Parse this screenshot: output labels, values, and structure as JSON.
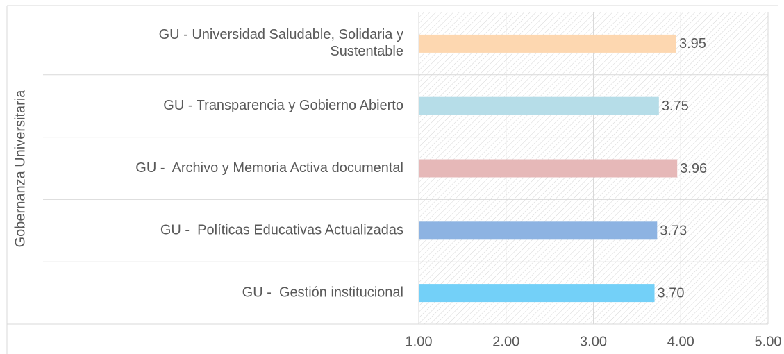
{
  "chart_data": {
    "type": "barh",
    "ylabel": "Gobernanza Universitaria",
    "categories": [
      "GU - Universidad Saludable, Solidaria y\nSustentable",
      "GU - Transparencia y Gobierno Abierto",
      "GU -  Archivo y Memoria Activa documental",
      "GU -  Políticas Educativas Actualizadas",
      "GU -  Gestión institucional"
    ],
    "values": [
      3.95,
      3.75,
      3.96,
      3.73,
      3.7
    ],
    "value_labels": [
      "3.95",
      "3.75",
      "3.96",
      "3.73",
      "3.70"
    ],
    "colors": [
      "#fdd7b0",
      "#b6dde8",
      "#e6b8b8",
      "#8db3e2",
      "#73d0f8"
    ],
    "xlim": [
      1,
      5
    ],
    "xticks": [
      {
        "value": 1,
        "label": "1.00"
      },
      {
        "value": 2,
        "label": "2.00"
      },
      {
        "value": 3,
        "label": "3.00"
      },
      {
        "value": 4,
        "label": "4.00"
      },
      {
        "value": 5,
        "label": "5.00"
      }
    ],
    "grid": true
  }
}
